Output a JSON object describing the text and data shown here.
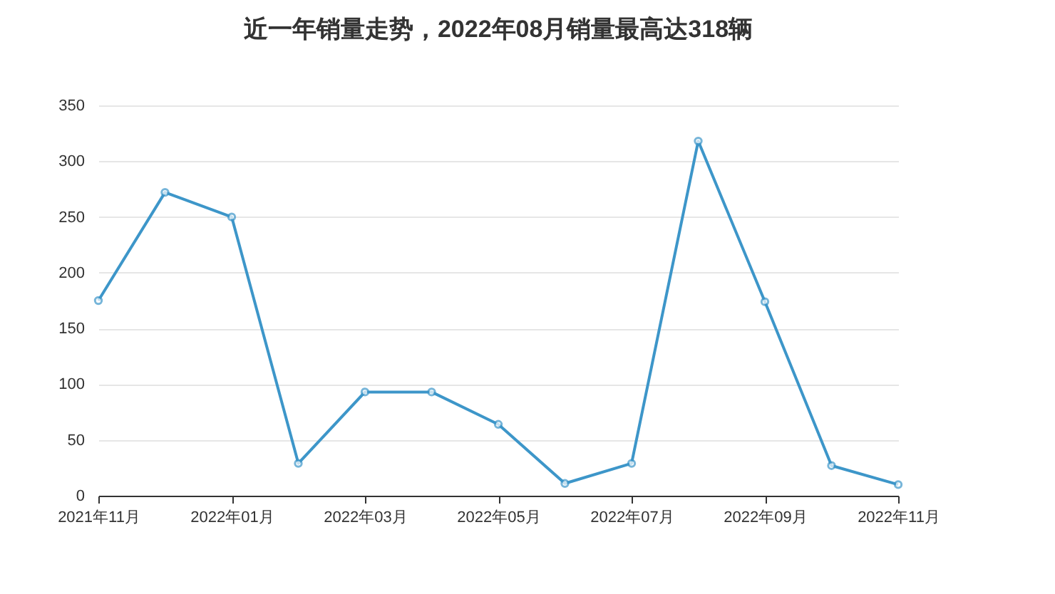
{
  "chart_data": {
    "type": "line",
    "title": "近一年销量走势，2022年08月销量最高达318辆",
    "categories": [
      "2021年11月",
      null,
      "2022年01月",
      null,
      "2022年03月",
      null,
      "2022年05月",
      null,
      "2022年07月",
      null,
      "2022年09月",
      null,
      "2022年11月"
    ],
    "series": [
      {
        "color": "#3d96c9",
        "values": [
          175,
          272,
          250,
          29,
          93,
          93,
          64,
          11,
          29,
          318,
          174,
          27,
          10
        ]
      }
    ],
    "ylim": [
      0,
      350
    ],
    "yticks": [
      0,
      50,
      100,
      150,
      200,
      250,
      300,
      350
    ],
    "grid": "y",
    "marker": "circle",
    "line_style": "solid"
  }
}
